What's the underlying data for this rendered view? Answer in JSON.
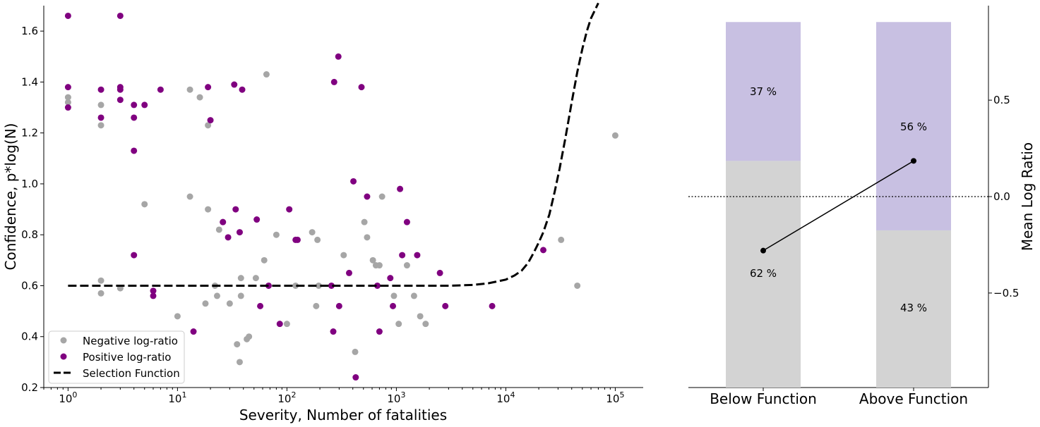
{
  "chart_data": [
    {
      "type": "scatter",
      "xlabel": "Severity, Number of fatalities",
      "ylabel": "Confidence, p*log(N)",
      "xscale": "log",
      "xlim": [
        0.6,
        180000
      ],
      "ylim": [
        0.2,
        1.7
      ],
      "yticks": [
        "0.2",
        "0.4",
        "0.6",
        "0.8",
        "1.0",
        "1.2",
        "1.4",
        "1.6"
      ],
      "xticks": [
        {
          "base": "10",
          "exp": "0",
          "value": 1
        },
        {
          "base": "10",
          "exp": "1",
          "value": 10
        },
        {
          "base": "10",
          "exp": "2",
          "value": 100
        },
        {
          "base": "10",
          "exp": "3",
          "value": 1000
        },
        {
          "base": "10",
          "exp": "4",
          "value": 10000
        },
        {
          "base": "10",
          "exp": "5",
          "value": 100000
        }
      ],
      "legend_position": "lower-left",
      "series": [
        {
          "name": "Negative log-ratio",
          "color": "#a6a6a6",
          "points": [
            [
              1,
              1.34
            ],
            [
              1,
              1.32
            ],
            [
              2,
              1.31
            ],
            [
              2,
              1.23
            ],
            [
              2,
              0.62
            ],
            [
              2,
              0.57
            ],
            [
              3,
              0.59
            ],
            [
              5,
              0.92
            ],
            [
              10,
              0.48
            ],
            [
              13,
              1.37
            ],
            [
              13,
              0.95
            ],
            [
              16,
              1.34
            ],
            [
              18,
              0.53
            ],
            [
              19,
              1.23
            ],
            [
              19,
              0.9
            ],
            [
              22,
              0.6
            ],
            [
              23,
              0.56
            ],
            [
              24,
              0.82
            ],
            [
              26,
              0.85
            ],
            [
              30,
              0.53
            ],
            [
              35,
              0.37
            ],
            [
              37,
              0.3
            ],
            [
              38,
              0.56
            ],
            [
              38,
              0.63
            ],
            [
              43,
              0.39
            ],
            [
              45,
              0.4
            ],
            [
              52,
              0.63
            ],
            [
              62,
              0.7
            ],
            [
              65,
              1.43
            ],
            [
              80,
              0.8
            ],
            [
              100,
              0.45
            ],
            [
              120,
              0.6
            ],
            [
              170,
              0.81
            ],
            [
              185,
              0.52
            ],
            [
              190,
              0.78
            ],
            [
              195,
              0.6
            ],
            [
              330,
              0.72
            ],
            [
              420,
              0.34
            ],
            [
              510,
              0.85
            ],
            [
              540,
              0.79
            ],
            [
              610,
              0.7
            ],
            [
              650,
              0.68
            ],
            [
              700,
              0.68
            ],
            [
              740,
              0.95
            ],
            [
              950,
              0.56
            ],
            [
              1050,
              0.45
            ],
            [
              1250,
              0.68
            ],
            [
              1450,
              0.56
            ],
            [
              1650,
              0.48
            ],
            [
              1850,
              0.45
            ],
            [
              32000,
              0.78
            ],
            [
              45000,
              0.6
            ],
            [
              100000,
              1.19
            ]
          ]
        },
        {
          "name": "Positive log-ratio",
          "color": "#800080",
          "points": [
            [
              1,
              1.66
            ],
            [
              1,
              1.38
            ],
            [
              1,
              1.3
            ],
            [
              2,
              1.37
            ],
            [
              2,
              1.26
            ],
            [
              3,
              1.66
            ],
            [
              3,
              1.38
            ],
            [
              3,
              1.37
            ],
            [
              3,
              1.33
            ],
            [
              4,
              1.31
            ],
            [
              4,
              1.26
            ],
            [
              4,
              1.13
            ],
            [
              4,
              0.72
            ],
            [
              5,
              1.31
            ],
            [
              6,
              0.58
            ],
            [
              6,
              0.56
            ],
            [
              7,
              1.37
            ],
            [
              14,
              0.42
            ],
            [
              19,
              1.38
            ],
            [
              20,
              1.25
            ],
            [
              26,
              0.85
            ],
            [
              29,
              0.79
            ],
            [
              33,
              1.39
            ],
            [
              34,
              0.9
            ],
            [
              37,
              0.81
            ],
            [
              39,
              1.37
            ],
            [
              53,
              0.86
            ],
            [
              57,
              0.52
            ],
            [
              68,
              0.6
            ],
            [
              86,
              0.45
            ],
            [
              105,
              0.9
            ],
            [
              120,
              0.78
            ],
            [
              125,
              0.78
            ],
            [
              255,
              0.6
            ],
            [
              265,
              0.42
            ],
            [
              270,
              1.4
            ],
            [
              295,
              1.5
            ],
            [
              300,
              0.52
            ],
            [
              370,
              0.65
            ],
            [
              405,
              1.01
            ],
            [
              425,
              0.24
            ],
            [
              480,
              1.38
            ],
            [
              540,
              0.95
            ],
            [
              670,
              0.6
            ],
            [
              700,
              0.42
            ],
            [
              880,
              0.63
            ],
            [
              930,
              0.52
            ],
            [
              1080,
              0.98
            ],
            [
              1130,
              0.72
            ],
            [
              1250,
              0.85
            ],
            [
              1550,
              0.72
            ],
            [
              2500,
              0.65
            ],
            [
              2800,
              0.52
            ],
            [
              7500,
              0.52
            ],
            [
              22000,
              0.74
            ]
          ]
        }
      ],
      "selection_function": {
        "name": "Selection Function",
        "baseline": 0.6,
        "curve": [
          [
            1,
            0.6
          ],
          [
            1000,
            0.6
          ],
          [
            3000,
            0.6
          ],
          [
            5000,
            0.603
          ],
          [
            7000,
            0.61
          ],
          [
            8000,
            0.615
          ],
          [
            10000,
            0.624
          ],
          [
            12000,
            0.64
          ],
          [
            14000,
            0.66
          ],
          [
            16000,
            0.69
          ],
          [
            18000,
            0.73
          ],
          [
            20000,
            0.77
          ],
          [
            22000,
            0.81
          ],
          [
            25000,
            0.88
          ],
          [
            28000,
            0.97
          ],
          [
            31000,
            1.06
          ],
          [
            35000,
            1.18
          ],
          [
            40000,
            1.32
          ],
          [
            45000,
            1.44
          ],
          [
            50000,
            1.53
          ],
          [
            55000,
            1.6
          ],
          [
            60000,
            1.65
          ],
          [
            70000,
            1.71
          ]
        ]
      }
    },
    {
      "type": "bar",
      "stacked": true,
      "categories": [
        "Below Function",
        "Above Function"
      ],
      "ylabel": "Mean Log Ratio",
      "ylim": [
        -0.99,
        0.99
      ],
      "yticks": [
        {
          "value": 0.5,
          "label": "0.5"
        },
        {
          "value": 0.0,
          "label": "0.0"
        },
        {
          "value": -0.5,
          "label": "−0.5"
        }
      ],
      "bar_extent": [
        -0.99,
        0.905
      ],
      "lower_fraction": [
        0.62,
        0.43
      ],
      "lower_labels": [
        "62 %",
        "43 %"
      ],
      "upper_labels": [
        "37 %",
        "56 %"
      ],
      "lower_color": "#d3d3d3",
      "upper_color": "#c8c0e2",
      "upper_label_color": "#800080",
      "mean_log_ratio": [
        -0.28,
        0.185
      ],
      "zero_line": 0.0
    }
  ]
}
